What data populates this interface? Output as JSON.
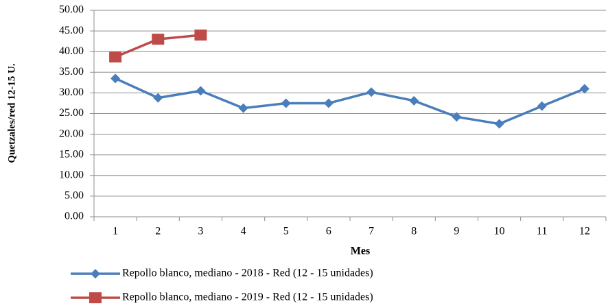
{
  "chart_data": {
    "type": "line",
    "x_label": "Mes",
    "y_label": "Quetzales/red 12-15 U.",
    "categories": [
      "1",
      "2",
      "3",
      "4",
      "5",
      "6",
      "7",
      "8",
      "9",
      "10",
      "11",
      "12"
    ],
    "series": [
      {
        "name": "Repollo blanco, mediano - 2018 - Red (12 - 15 unidades)",
        "color": "#4a7ebb",
        "marker": "diamond",
        "values": [
          33.5,
          28.8,
          30.5,
          26.3,
          27.5,
          27.5,
          30.2,
          28.1,
          24.2,
          22.5,
          26.8,
          31.0
        ]
      },
      {
        "name": "Repollo blanco, mediano - 2019 - Red (12 - 15 unidades)",
        "color": "#be4b48",
        "marker": "square",
        "values": [
          38.7,
          43.0,
          44.0,
          null,
          null,
          null,
          null,
          null,
          null,
          null,
          null,
          null
        ]
      }
    ],
    "ylim": [
      0,
      50
    ],
    "yticks": [
      {
        "value": 0,
        "label": "0.00"
      },
      {
        "value": 5,
        "label": "5.00"
      },
      {
        "value": 10,
        "label": "10.00"
      },
      {
        "value": 15,
        "label": "15.00"
      },
      {
        "value": 20,
        "label": "20.00"
      },
      {
        "value": 25,
        "label": "25.00"
      },
      {
        "value": 30,
        "label": "30.00"
      },
      {
        "value": 35,
        "label": "35.00"
      },
      {
        "value": 40,
        "label": "40.00"
      },
      {
        "value": 45,
        "label": "45.00"
      },
      {
        "value": 50,
        "label": "50.00"
      }
    ],
    "grid": true,
    "legend": "bottom"
  }
}
